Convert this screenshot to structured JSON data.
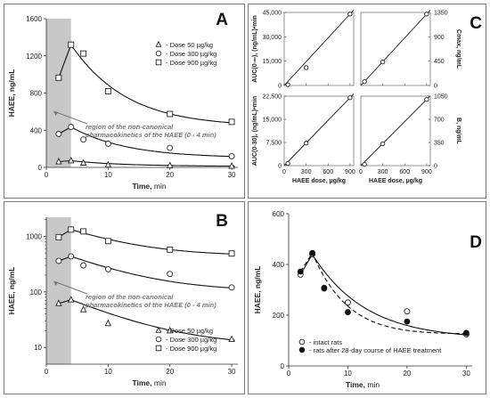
{
  "chart_data": [
    {
      "panel": "A",
      "type": "scatter",
      "yscale": "linear",
      "xlabel": "Time, min",
      "ylabel": "HAEE, ng/mL",
      "xlim": [
        0,
        31
      ],
      "ylim": [
        0,
        1600
      ],
      "xticks": [
        0,
        10,
        20,
        30
      ],
      "yticks": [
        0,
        400,
        800,
        1200,
        1600
      ],
      "shaded_x": [
        0,
        4
      ],
      "annotation": [
        "region of the non-canonical",
        "pharmacokinetics of the HAEE (0 - 4 min)"
      ],
      "series": [
        {
          "name": "- Dose  50 µg/kg",
          "marker": "triangle",
          "x": [
            2,
            4,
            6,
            10,
            20,
            30
          ],
          "y": [
            62,
            72,
            48,
            27,
            20,
            14
          ]
        },
        {
          "name": "- Dose 300 µg/kg",
          "marker": "circle",
          "x": [
            2,
            4,
            6,
            10,
            20,
            30
          ],
          "y": [
            360,
            435,
            300,
            255,
            210,
            120
          ]
        },
        {
          "name": "- Dose 900 µg/kg",
          "marker": "square",
          "x": [
            2,
            4,
            6,
            10,
            20,
            30
          ],
          "y": [
            965,
            1320,
            1225,
            820,
            575,
            490
          ]
        }
      ]
    },
    {
      "panel": "B",
      "type": "scatter",
      "yscale": "log",
      "xlabel": "Time, min",
      "ylabel": "HAEE, ng/mL",
      "xlim": [
        0,
        31
      ],
      "ylim": [
        5,
        2200
      ],
      "xticks": [
        0,
        10,
        20,
        30
      ],
      "yticks": [
        10,
        100,
        1000
      ],
      "shaded_x": [
        0,
        4
      ],
      "annotation": [
        "region of the non-canonical",
        "pharmacokinetics of the HAEE (0 - 4 min)"
      ],
      "series": [
        {
          "name": "- Dose  50 µg/kg",
          "marker": "triangle",
          "x": [
            2,
            4,
            6,
            10,
            20,
            30
          ],
          "y": [
            62,
            72,
            48,
            27,
            20,
            14
          ]
        },
        {
          "name": "- Dose 300 µg/kg",
          "marker": "circle",
          "x": [
            2,
            4,
            6,
            10,
            20,
            30
          ],
          "y": [
            360,
            435,
            300,
            255,
            210,
            120
          ]
        },
        {
          "name": "- Dose 900 µg/kg",
          "marker": "square",
          "x": [
            2,
            4,
            6,
            10,
            20,
            30
          ],
          "y": [
            965,
            1320,
            1225,
            820,
            575,
            490
          ]
        }
      ]
    },
    {
      "panel": "C1",
      "type": "scatter",
      "xlabel": "",
      "ylabel": "AUC(0-∞), (ng/mL)•min",
      "xlim": [
        0,
        950
      ],
      "ylim": [
        0,
        45000
      ],
      "xticks": [
        0,
        300,
        600,
        900
      ],
      "yticks": [
        0,
        15000,
        30000,
        45000
      ],
      "ytick_labels": [
        "0",
        "15,000",
        "30,000",
        "45,000"
      ],
      "x": [
        50,
        300,
        900
      ],
      "y": [
        500,
        11000,
        44000
      ]
    },
    {
      "panel": "C2",
      "type": "scatter",
      "xlabel": "",
      "ylabel": "Cmax, ng/mL",
      "xlim": [
        0,
        950
      ],
      "ylim": [
        0,
        1350
      ],
      "xticks": [
        0,
        300,
        600,
        900
      ],
      "yticks": [
        0,
        450,
        900,
        1350
      ],
      "x": [
        50,
        300,
        900
      ],
      "y": [
        72,
        435,
        1320
      ]
    },
    {
      "panel": "C3",
      "type": "scatter",
      "xlabel": "HAEE dose, µg/kg",
      "ylabel": "AUC(0-30), (ng/mL)•min",
      "xlim": [
        0,
        950
      ],
      "ylim": [
        0,
        22500
      ],
      "xticks": [
        0,
        300,
        600,
        900
      ],
      "yticks": [
        0,
        7500,
        15000,
        22500
      ],
      "ytick_labels": [
        "0",
        "7,500",
        "15,000",
        "22,500"
      ],
      "x": [
        50,
        300,
        900
      ],
      "y": [
        700,
        7300,
        22000
      ]
    },
    {
      "panel": "C4",
      "type": "scatter",
      "xlabel": "HAEE dose, µg/kg",
      "ylabel": "B, ng/mL",
      "xlim": [
        0,
        950
      ],
      "ylim": [
        0,
        1050
      ],
      "xticks": [
        0,
        300,
        600,
        900
      ],
      "yticks": [
        0,
        350,
        700,
        1050
      ],
      "x": [
        50,
        300,
        900
      ],
      "y": [
        18,
        330,
        1000
      ]
    },
    {
      "panel": "D",
      "type": "scatter",
      "xlabel": "Time, min",
      "ylabel": "HAEE, ng/mL",
      "xlim": [
        0,
        31
      ],
      "ylim": [
        0,
        600
      ],
      "xticks": [
        0,
        10,
        20,
        30
      ],
      "yticks": [
        0,
        200,
        400,
        600
      ],
      "series": [
        {
          "name": "- intact rats",
          "marker": "open-circle",
          "line": "solid",
          "x": [
            2,
            4,
            6,
            10,
            20,
            30
          ],
          "y": [
            360,
            440,
            305,
            250,
            215,
            125
          ]
        },
        {
          "name": "- rats after 28-day course of HAEE treatment",
          "marker": "filled-circle",
          "line": "dashed",
          "x": [
            2,
            4,
            6,
            10,
            20,
            30
          ],
          "y": [
            372,
            445,
            308,
            212,
            175,
            130
          ]
        }
      ]
    }
  ]
}
